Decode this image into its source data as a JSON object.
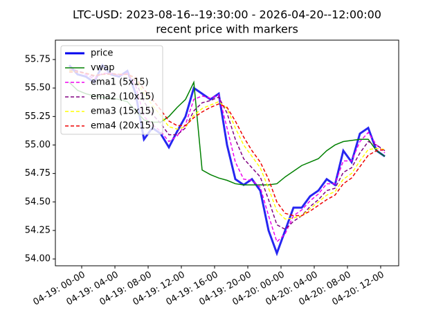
{
  "chart_data": {
    "type": "line",
    "title": "LTC-USD: 2023-08-16--19:30:00 - 2026-04-20--12:00:00",
    "subtitle": "recent price with markers",
    "x": [
      -1.5,
      -0.5,
      0.5,
      1.5,
      2.5,
      3.5,
      4.5,
      5.5,
      6.5,
      7.5,
      8.5,
      9.5,
      10.5,
      11.5,
      12.5,
      13.5,
      14.5,
      15.5,
      16.5,
      17.5,
      18.5,
      19.5,
      20.5,
      21.5,
      22.5,
      23.5,
      24.5,
      25.5,
      26.5,
      27.5,
      28.5,
      29.5,
      30.5,
      31.5,
      32.5,
      33.5,
      34.5,
      35.5,
      36.5
    ],
    "series": [
      {
        "name": "price",
        "color": "#0000ee",
        "values": [
          55.7,
          55.62,
          55.6,
          55.55,
          55.7,
          55.62,
          55.6,
          55.65,
          55.45,
          55.05,
          55.15,
          55.1,
          54.98,
          55.12,
          55.25,
          55.5,
          55.45,
          55.4,
          55.45,
          55.0,
          54.7,
          54.65,
          54.7,
          54.6,
          54.25,
          54.05,
          54.25,
          54.45,
          54.45,
          54.55,
          54.6,
          54.7,
          54.65,
          54.95,
          54.85,
          55.1,
          55.15,
          54.95,
          54.9
        ]
      },
      {
        "name": "vwap",
        "color": "#008000",
        "values": [
          55.55,
          55.48,
          55.45,
          55.43,
          55.42,
          55.41,
          55.4,
          55.38,
          55.3,
          55.22,
          55.2,
          55.2,
          55.25,
          55.33,
          55.4,
          55.55,
          54.78,
          54.74,
          54.71,
          54.69,
          54.66,
          54.65,
          54.65,
          54.65,
          54.65,
          54.66,
          54.72,
          54.77,
          54.82,
          54.85,
          54.88,
          54.95,
          55.0,
          55.03,
          55.04,
          55.05,
          55.05,
          54.95,
          54.9
        ]
      },
      {
        "name": "ema1 (5x15)",
        "color": "#ee00ee",
        "values": [
          55.68,
          55.65,
          55.62,
          55.58,
          55.63,
          55.63,
          55.61,
          55.63,
          55.52,
          55.25,
          55.18,
          55.12,
          55.03,
          55.08,
          55.18,
          55.4,
          55.43,
          55.41,
          55.44,
          55.15,
          54.85,
          54.7,
          54.69,
          54.63,
          54.38,
          54.15,
          54.22,
          54.38,
          54.43,
          54.51,
          54.57,
          54.66,
          54.66,
          54.86,
          54.86,
          55.03,
          55.11,
          55.0,
          54.93
        ]
      },
      {
        "name": "ema2 (10x15)",
        "color": "#800080",
        "values": [
          55.66,
          55.65,
          55.63,
          55.6,
          55.62,
          55.63,
          55.62,
          55.62,
          55.56,
          55.38,
          55.27,
          55.19,
          55.09,
          55.09,
          55.15,
          55.3,
          55.37,
          55.39,
          55.42,
          55.28,
          55.05,
          54.88,
          54.8,
          54.72,
          54.52,
          54.3,
          54.26,
          54.33,
          54.38,
          54.46,
          54.52,
          54.6,
          54.62,
          54.76,
          54.8,
          54.93,
          55.03,
          55.0,
          54.95
        ]
      },
      {
        "name": "ema3 (15x15)",
        "color": "#ffff00",
        "values": [
          55.65,
          55.64,
          55.63,
          55.61,
          55.62,
          55.62,
          55.62,
          55.62,
          55.58,
          55.45,
          55.35,
          55.26,
          55.16,
          55.14,
          55.16,
          55.26,
          55.32,
          55.35,
          55.38,
          55.32,
          55.15,
          55.0,
          54.9,
          54.8,
          54.62,
          54.42,
          54.35,
          54.36,
          54.38,
          54.44,
          54.5,
          54.56,
          54.59,
          54.7,
          54.75,
          54.86,
          54.96,
          54.97,
          54.96
        ]
      },
      {
        "name": "ema4 (20x15)",
        "color": "#ee0000",
        "values": [
          55.64,
          55.64,
          55.63,
          55.61,
          55.62,
          55.62,
          55.62,
          55.62,
          55.59,
          55.49,
          55.4,
          55.31,
          55.21,
          55.17,
          55.17,
          55.24,
          55.29,
          55.33,
          55.36,
          55.33,
          55.21,
          55.07,
          54.95,
          54.85,
          54.7,
          54.5,
          54.4,
          54.38,
          54.38,
          54.42,
          54.47,
          54.52,
          54.56,
          54.66,
          54.71,
          54.81,
          54.91,
          54.95,
          54.96
        ]
      }
    ],
    "xlim": [
      -3.17,
      38.17
    ],
    "ylim": [
      53.94,
      55.92
    ],
    "xticks": [
      {
        "value": 0,
        "label": "04-19: 00-00"
      },
      {
        "value": 4,
        "label": "04-19: 04-00"
      },
      {
        "value": 8,
        "label": "04-19: 08-00"
      },
      {
        "value": 12,
        "label": "04-19: 12-00"
      },
      {
        "value": 16,
        "label": "04-19: 16-00"
      },
      {
        "value": 20,
        "label": "04-19: 20-00"
      },
      {
        "value": 24,
        "label": "04-20: 00-00"
      },
      {
        "value": 28,
        "label": "04-20: 04-00"
      },
      {
        "value": 32,
        "label": "04-20: 08-00"
      },
      {
        "value": 36,
        "label": "04-20: 12-00"
      }
    ],
    "yticks": [
      {
        "value": 54,
        "label": "54.00"
      },
      {
        "value": 54.25,
        "label": "54.25"
      },
      {
        "value": 54.5,
        "label": "54.50"
      },
      {
        "value": 54.75,
        "label": "54.75"
      },
      {
        "value": 55,
        "label": "55.00"
      },
      {
        "value": 55.25,
        "label": "55.25"
      },
      {
        "value": 55.5,
        "label": "55.50"
      },
      {
        "value": 55.75,
        "label": "55.75"
      }
    ],
    "legend": "upper left"
  }
}
